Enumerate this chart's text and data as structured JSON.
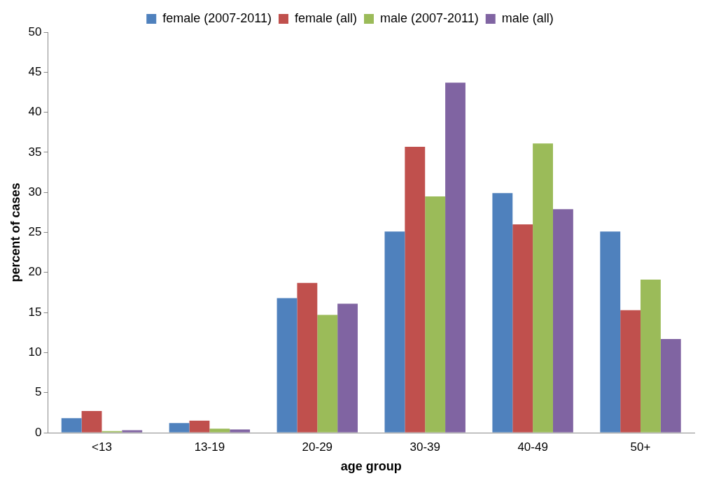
{
  "chart_data": {
    "type": "bar",
    "xlabel": "age group",
    "ylabel": "percent of cases",
    "categories": [
      "<13",
      "13-19",
      "20-29",
      "30-39",
      "40-49",
      "50+"
    ],
    "series": [
      {
        "name": "female (2007-2011)",
        "color": "#4f81bd",
        "values": [
          1.8,
          1.2,
          16.8,
          25.1,
          29.9,
          25.1
        ]
      },
      {
        "name": "female (all)",
        "color": "#c0504d",
        "values": [
          2.7,
          1.5,
          18.7,
          35.7,
          26.0,
          15.3
        ]
      },
      {
        "name": "male (2007-2011)",
        "color": "#9bbb59",
        "values": [
          0.2,
          0.5,
          14.7,
          29.5,
          36.1,
          19.1
        ]
      },
      {
        "name": "male (all)",
        "color": "#8064a2",
        "values": [
          0.3,
          0.4,
          16.1,
          43.7,
          27.9,
          11.7
        ]
      }
    ],
    "ylim": [
      0,
      50
    ],
    "yticks": [
      0,
      5,
      10,
      15,
      20,
      25,
      30,
      35,
      40,
      45,
      50
    ],
    "grid": false,
    "legend": "top"
  }
}
